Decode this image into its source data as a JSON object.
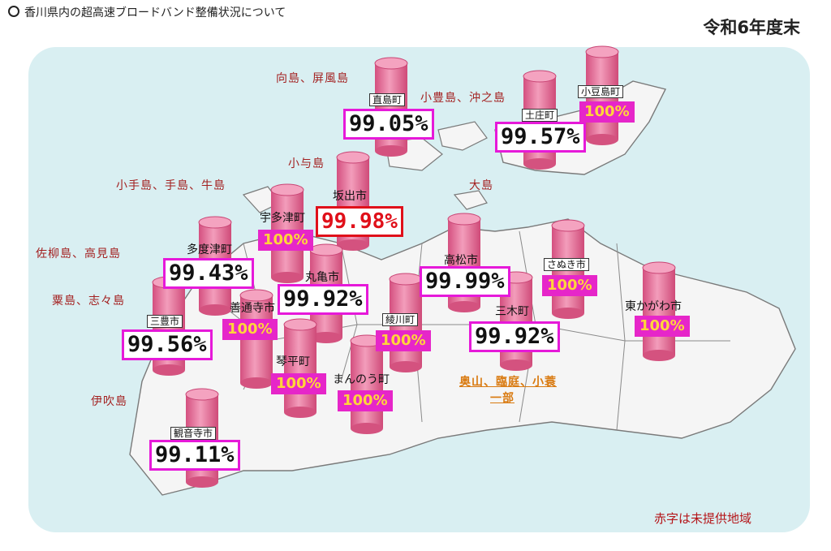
{
  "header": {
    "title": "香川県内の超高速ブロードバンド整備状況について",
    "period": "令和6年度末"
  },
  "municipalities": {
    "naoshima": {
      "name": "直島町",
      "pct": "99.05%"
    },
    "tonosho": {
      "name": "土庄町",
      "pct": "99.57%"
    },
    "shodoshima": {
      "name": "小豆島町",
      "pct": "100%"
    },
    "sakaide": {
      "name": "坂出市",
      "pct": "99.98%"
    },
    "utazu": {
      "name": "宇多津町",
      "pct": "100%"
    },
    "tadotsu": {
      "name": "多度津町",
      "pct": "99.43%"
    },
    "marugame": {
      "name": "丸亀市",
      "pct": "99.92%"
    },
    "takamatsu": {
      "name": "高松市",
      "pct": "99.99%"
    },
    "sanuki": {
      "name": "さぬき市",
      "pct": "100%"
    },
    "zentsuji": {
      "name": "善通寺市",
      "pct": "100%"
    },
    "ayagawa": {
      "name": "綾川町",
      "pct": "100%"
    },
    "miki": {
      "name": "三木町",
      "pct": "99.92%"
    },
    "higashikagawa": {
      "name": "東かがわ市",
      "pct": "100%"
    },
    "mitoyo": {
      "name": "三豊市",
      "pct": "99.56%"
    },
    "kotohira": {
      "name": "琴平町",
      "pct": "100%"
    },
    "manno": {
      "name": "まんのう町",
      "pct": "100%"
    },
    "kanonji": {
      "name": "観音寺市",
      "pct": "99.11%"
    }
  },
  "islands": {
    "mukaishima": "向島、屏風島",
    "toyoshima": "小豊島、沖之島",
    "oyoshima": "小与島",
    "oshima": "大島",
    "kote": "小手島、手島、牛島",
    "sanagi": "佐柳島、高見島",
    "awashima": "粟島、志々島",
    "ibuki": "伊吹島",
    "okuyama": "奥山、臨庭、小蓑",
    "okuyama2": "一部"
  },
  "legend": "赤字は未提供地域",
  "colors": {
    "cylinder": "#e8759b",
    "pct_border": "#e619d9",
    "full_bg": "#e626c9",
    "full_text": "#ffd53a",
    "island_text": "#a32020",
    "unserved": "#e0101a",
    "panel": "#d9eff2"
  }
}
